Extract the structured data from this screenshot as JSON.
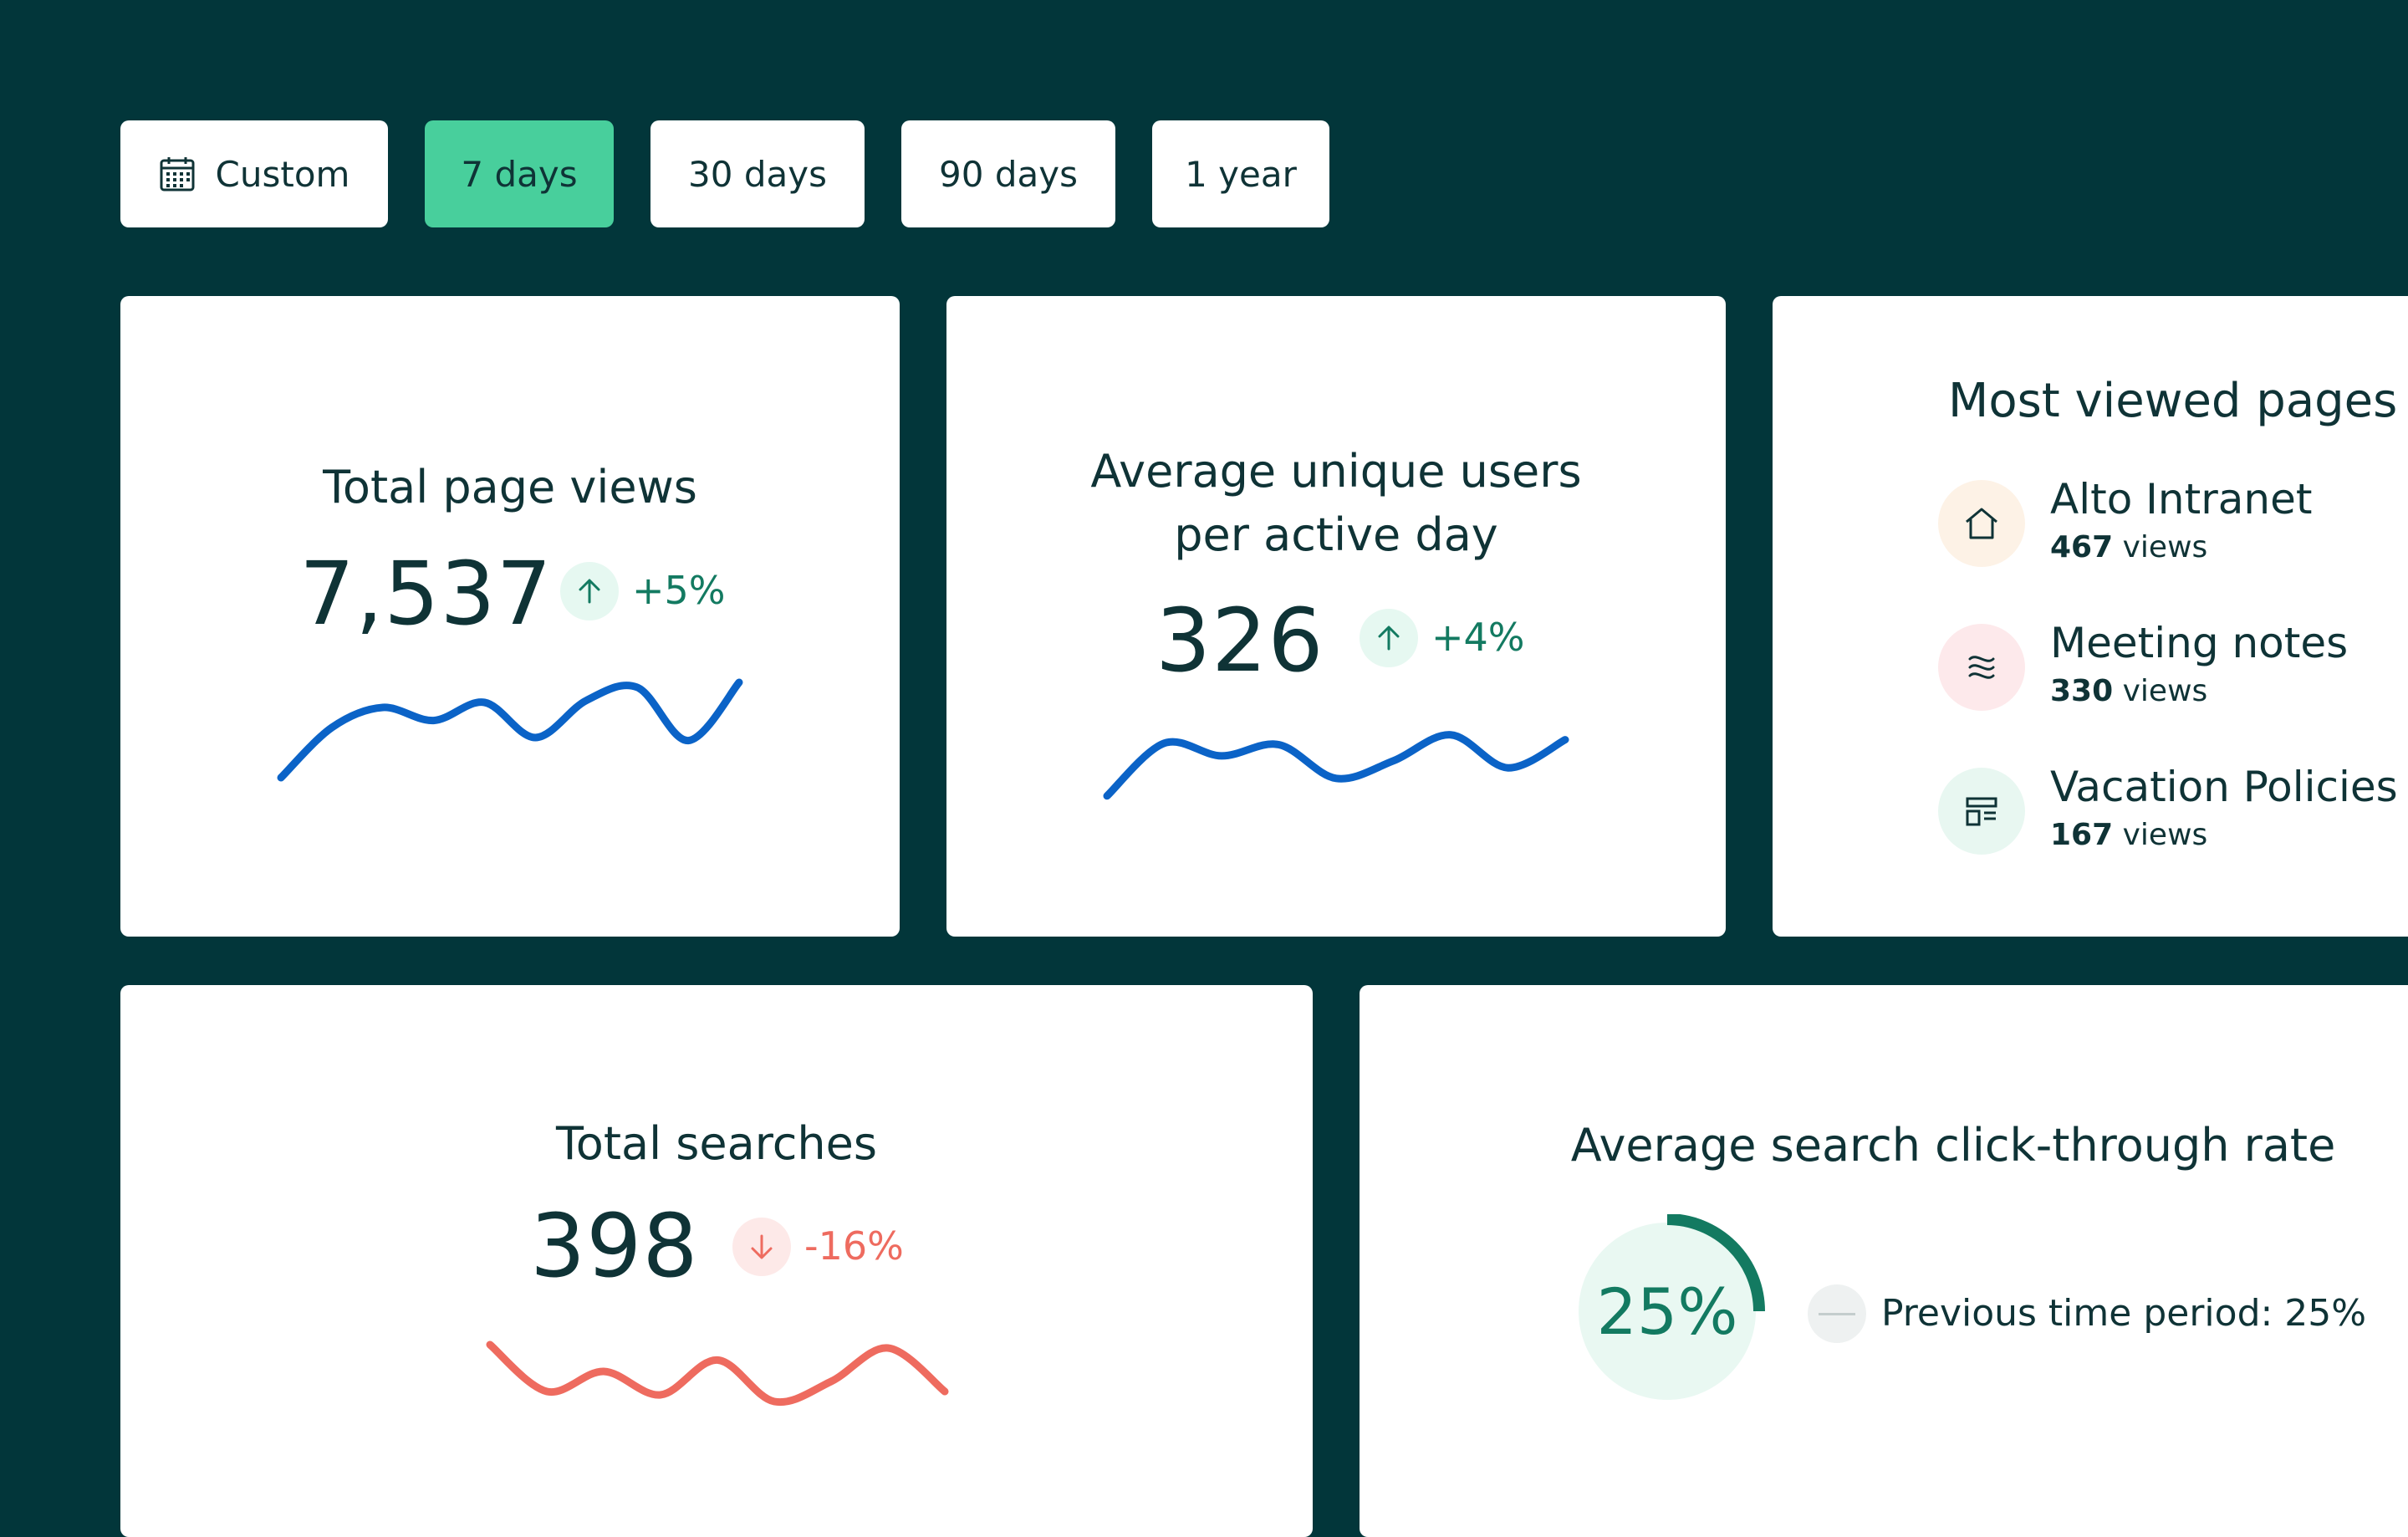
{
  "filters": {
    "custom": {
      "label": "Custom",
      "icon": "calendar-icon"
    },
    "items": [
      {
        "label": "7 days",
        "active": true
      },
      {
        "label": "30 days"
      },
      {
        "label": "90 days"
      },
      {
        "label": "1 year"
      }
    ]
  },
  "page_views": {
    "title": "Total page views",
    "value": "7,537",
    "change": "+5%",
    "direction": "up",
    "sparkline": [
      0.05,
      0.55,
      0.75,
      0.62,
      0.8,
      0.45,
      0.82,
      0.95,
      0.42,
      1.0
    ]
  },
  "unique_users": {
    "title_line1": "Average unique users",
    "title_line2": "per active day",
    "value": "326",
    "change": "+4%",
    "direction": "up",
    "sparkline": [
      0.05,
      0.8,
      0.62,
      0.78,
      0.3,
      0.55,
      0.92,
      0.45,
      0.85
    ]
  },
  "most_viewed": {
    "title": "Most viewed pages",
    "pages": [
      {
        "name": "Alto Intranet",
        "count": "467",
        "suffix": "views",
        "icon": "home-icon",
        "color": "#fdf2e6"
      },
      {
        "name": "Meeting notes",
        "count": "330",
        "suffix": "views",
        "icon": "notes-icon",
        "color": "#fde9eb"
      },
      {
        "name": "Vacation Policies",
        "count": "167",
        "suffix": "views",
        "icon": "layout-icon",
        "color": "#e8f7f1"
      }
    ]
  },
  "searches": {
    "title": "Total searches",
    "value": "398",
    "change": "-16%",
    "direction": "down",
    "sparkline": [
      0.95,
      0.25,
      0.55,
      0.2,
      0.72,
      0.1,
      0.4,
      0.9,
      0.25
    ]
  },
  "ctr": {
    "title": "Average search click-through rate",
    "value": "25%",
    "percent": 25,
    "previous": "Previous time period: 25%"
  },
  "colors": {
    "background": "#02363a",
    "accent": "#48cf9c",
    "text": "#0f3336",
    "sparkline_blue": "#0b63c7",
    "sparkline_red": "#ee6b5f",
    "positive": "#137a61",
    "negative": "#ee6b5f"
  }
}
